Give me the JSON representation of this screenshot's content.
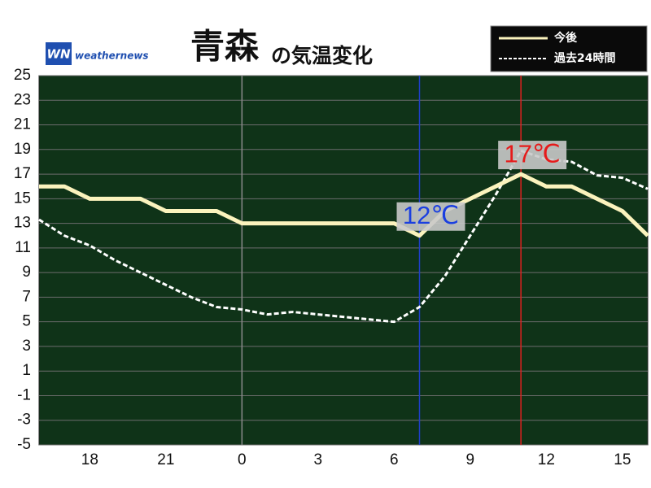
{
  "chart_data": {
    "type": "line",
    "title": [
      "青森",
      "の気温変化"
    ],
    "brand": "weathernews",
    "brand_mark": "WN",
    "xlim": [
      16,
      40
    ],
    "xticks": [
      {
        "value": 18,
        "label": "18"
      },
      {
        "value": 21,
        "label": "21"
      },
      {
        "value": 24,
        "label": "0"
      },
      {
        "value": 27,
        "label": "3"
      },
      {
        "value": 30,
        "label": "6"
      },
      {
        "value": 33,
        "label": "9"
      },
      {
        "value": 36,
        "label": "12"
      },
      {
        "value": 39,
        "label": "15"
      }
    ],
    "ylim": [
      -5,
      25
    ],
    "yticks": [
      25,
      23,
      21,
      19,
      17,
      15,
      13,
      11,
      9,
      7,
      5,
      3,
      1,
      -1,
      -3,
      -5
    ],
    "grid": true,
    "background": "#0f3318",
    "legend": "top-right",
    "vlines": [
      {
        "x": 24,
        "color": "#8a8a8a"
      },
      {
        "x": 31,
        "color": "#1f3fc8"
      },
      {
        "x": 35,
        "color": "#e02020"
      }
    ],
    "series": [
      {
        "name": "今後",
        "color": "#fbf3bd",
        "dashed": false,
        "x": [
          16,
          17,
          18,
          19,
          20,
          21,
          22,
          23,
          24,
          25,
          26,
          27,
          28,
          29,
          30,
          31,
          32,
          33,
          34,
          35,
          36,
          37,
          38,
          39,
          40
        ],
        "values": [
          16,
          16,
          15,
          15,
          15,
          14,
          14,
          14,
          13,
          13,
          13,
          13,
          13,
          13,
          13,
          12,
          14,
          15,
          16,
          17,
          16,
          16,
          15,
          14,
          12
        ]
      },
      {
        "name": "過去24時間",
        "color": "#ffffff",
        "dashed": true,
        "x": [
          16,
          17,
          18,
          19,
          20,
          21,
          22,
          23,
          24,
          25,
          26,
          27,
          28,
          29,
          30,
          31,
          32,
          33,
          34,
          35,
          36,
          37,
          38,
          39,
          40
        ],
        "values": [
          13.3,
          12,
          11.2,
          10,
          9,
          8,
          7,
          6.2,
          6,
          5.6,
          5.8,
          5.6,
          5.4,
          5.2,
          5,
          6.2,
          8.7,
          12,
          15.3,
          18.9,
          18.2,
          18,
          16.9,
          16.7,
          15.8
        ]
      }
    ],
    "annotations": [
      {
        "text": "12℃",
        "x": 31,
        "y": 12,
        "color": "#1a3fe0"
      },
      {
        "text": "17℃",
        "x": 35,
        "y": 17,
        "color": "#e61a1a"
      }
    ]
  }
}
